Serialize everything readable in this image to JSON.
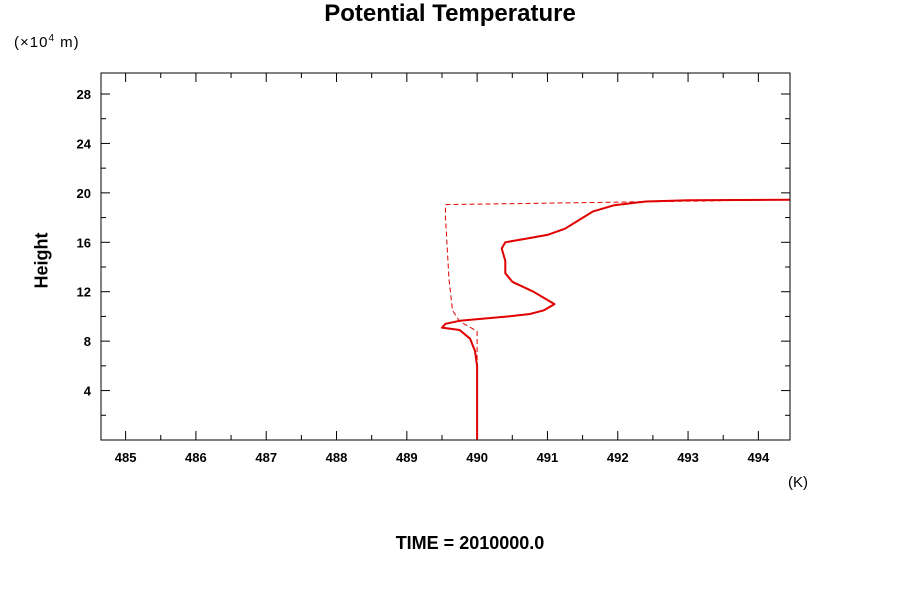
{
  "chart_data": {
    "type": "line",
    "title": "Potential Temperature",
    "xlabel": "",
    "xunit": "(K)",
    "ylabel": "Height",
    "yunit_prefix": "(×10",
    "yunit_exp": "4",
    "yunit_suffix": " m)",
    "caption": "TIME = 2010000.0",
    "xlim": [
      484.65,
      494.45
    ],
    "ylim": [
      0,
      29.7
    ],
    "xticks": [
      "485",
      "486",
      "487",
      "488",
      "489",
      "490",
      "491",
      "492",
      "493",
      "494"
    ],
    "yticks": [
      "4",
      "8",
      "12",
      "16",
      "20",
      "24",
      "28"
    ],
    "grid": false,
    "series": [
      {
        "style": "solid",
        "color": "#e00000",
        "points": [
          [
            490.0,
            0
          ],
          [
            490.0,
            2
          ],
          [
            490.0,
            4
          ],
          [
            490.0,
            6
          ],
          [
            489.97,
            7.2
          ],
          [
            489.9,
            8.2
          ],
          [
            489.75,
            8.9
          ],
          [
            489.5,
            9.1
          ],
          [
            489.55,
            9.4
          ],
          [
            489.75,
            9.65
          ],
          [
            490.05,
            9.8
          ],
          [
            490.45,
            10.0
          ],
          [
            490.75,
            10.2
          ],
          [
            490.95,
            10.5
          ],
          [
            491.1,
            11.0
          ],
          [
            490.95,
            11.5
          ],
          [
            490.8,
            12.0
          ],
          [
            490.5,
            12.8
          ],
          [
            490.4,
            13.5
          ],
          [
            490.4,
            14.5
          ],
          [
            490.35,
            15.5
          ],
          [
            490.4,
            16.0
          ],
          [
            490.7,
            16.3
          ],
          [
            491.0,
            16.6
          ],
          [
            491.25,
            17.1
          ],
          [
            491.45,
            17.8
          ],
          [
            491.65,
            18.5
          ],
          [
            491.95,
            19.0
          ],
          [
            492.4,
            19.3
          ],
          [
            493.0,
            19.4
          ],
          [
            494.45,
            19.45
          ]
        ]
      },
      {
        "style": "dashed",
        "color": "#e00000",
        "points": [
          [
            490.0,
            0
          ],
          [
            490.0,
            8.8
          ],
          [
            489.75,
            9.6
          ],
          [
            489.65,
            10.5
          ],
          [
            489.6,
            13
          ],
          [
            489.57,
            16
          ],
          [
            489.55,
            18
          ],
          [
            489.55,
            19.05
          ],
          [
            494.45,
            19.45
          ]
        ]
      }
    ]
  }
}
